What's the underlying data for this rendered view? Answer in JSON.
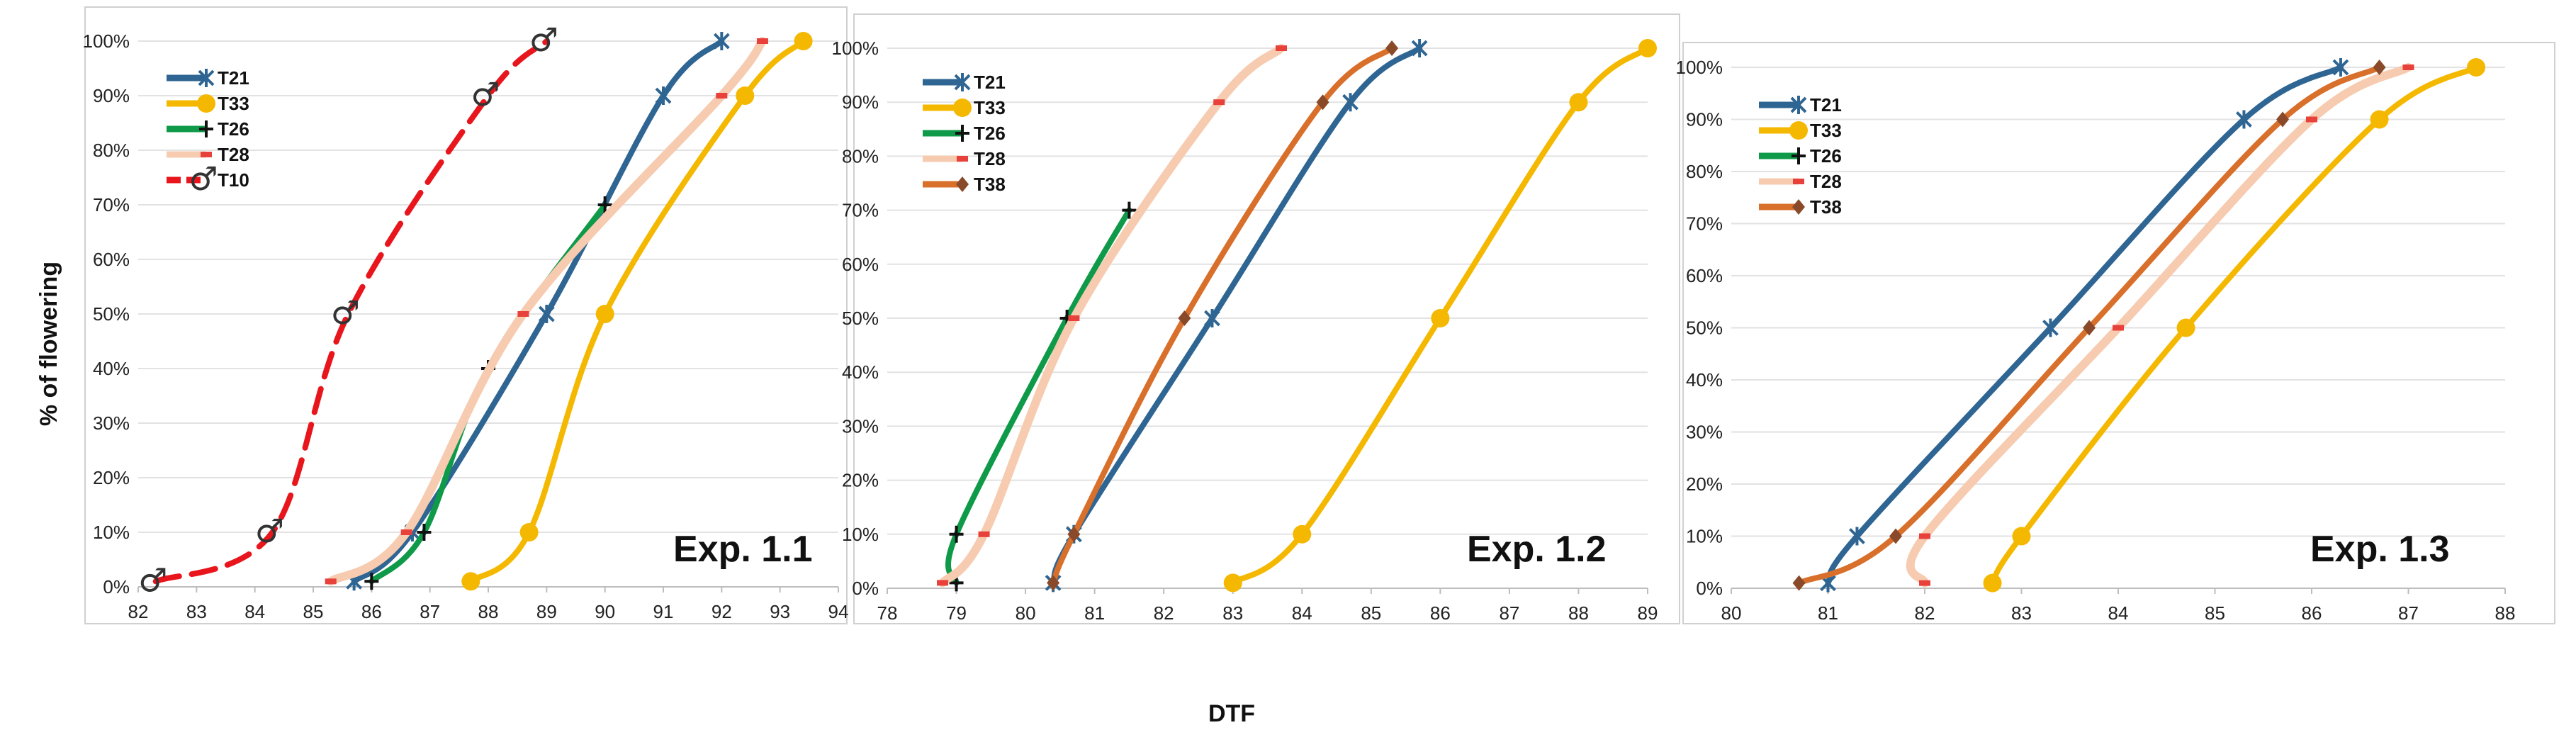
{
  "figure": {
    "ylabel": "% of flowering",
    "xlabel": "DTF"
  },
  "colors": {
    "T21": "#2e6592",
    "T33": "#f5b800",
    "T26": "#0e9a48",
    "T28": "#f6cbb0",
    "T10": "#e8161c",
    "T38": "#d86f2a",
    "marker_T28": "#e8403a",
    "marker_T10": "#333333"
  },
  "chart_data": [
    {
      "type": "line",
      "title": "Exp. 1.1",
      "xlabel": "",
      "ylabel": "% of flowering",
      "xlim": [
        82,
        94
      ],
      "ylim": [
        0,
        100
      ],
      "x_ticks": [
        "82",
        "83",
        "84",
        "85",
        "86",
        "87",
        "88",
        "89",
        "90",
        "91",
        "92",
        "93",
        "94"
      ],
      "y_ticks": [
        "0%",
        "10%",
        "20%",
        "30%",
        "40%",
        "50%",
        "60%",
        "70%",
        "80%",
        "90%",
        "100%"
      ],
      "legend_position": "top-left",
      "series": [
        {
          "name": "T21",
          "color_key": "T21",
          "marker": "star",
          "x": [
            85.7,
            86.7,
            89.0,
            91.0,
            92.0
          ],
          "y": [
            1,
            10,
            50,
            90,
            100
          ]
        },
        {
          "name": "T33",
          "color_key": "T33",
          "marker": "circle",
          "x": [
            87.7,
            88.7,
            90.0,
            92.4,
            93.4
          ],
          "y": [
            1,
            10,
            50,
            90,
            100
          ]
        },
        {
          "name": "T26",
          "color_key": "T26",
          "marker": "plus",
          "x": [
            86.0,
            86.9,
            88.0,
            90.0
          ],
          "y": [
            1,
            10,
            40,
            70
          ]
        },
        {
          "name": "T28",
          "color_key": "T28",
          "marker": "dash",
          "x": [
            85.3,
            86.6,
            88.6,
            92.0,
            92.7
          ],
          "y": [
            1,
            10,
            50,
            90,
            100
          ]
        },
        {
          "name": "T10",
          "color_key": "T10",
          "marker": "male",
          "dashed": true,
          "x": [
            82.3,
            84.3,
            85.6,
            88.0,
            89.0
          ],
          "y": [
            1,
            10,
            50,
            90,
            100
          ]
        }
      ]
    },
    {
      "type": "line",
      "title": "Exp. 1.2",
      "xlabel": "DTF",
      "ylabel": "",
      "xlim": [
        78,
        89
      ],
      "ylim": [
        0,
        100
      ],
      "x_ticks": [
        "78",
        "79",
        "80",
        "81",
        "82",
        "83",
        "84",
        "85",
        "86",
        "87",
        "88",
        "89"
      ],
      "y_ticks": [
        "0%",
        "10%",
        "20%",
        "30%",
        "40%",
        "50%",
        "60%",
        "70%",
        "80%",
        "90%",
        "100%"
      ],
      "legend_position": "top-left",
      "series": [
        {
          "name": "T21",
          "color_key": "T21",
          "marker": "star",
          "x": [
            80.4,
            80.7,
            82.7,
            84.7,
            85.7
          ],
          "y": [
            1,
            10,
            50,
            90,
            100
          ]
        },
        {
          "name": "T33",
          "color_key": "T33",
          "marker": "circle",
          "x": [
            83.0,
            84.0,
            86.0,
            88.0,
            89.0
          ],
          "y": [
            1,
            10,
            50,
            90,
            100
          ]
        },
        {
          "name": "T26",
          "color_key": "T26",
          "marker": "plus",
          "x": [
            79.0,
            79.0,
            80.6,
            81.5
          ],
          "y": [
            1,
            10,
            50,
            70
          ]
        },
        {
          "name": "T28",
          "color_key": "T28",
          "marker": "dash",
          "x": [
            78.8,
            79.4,
            80.7,
            82.8,
            83.7
          ],
          "y": [
            1,
            10,
            50,
            90,
            100
          ]
        },
        {
          "name": "T38",
          "color_key": "T38",
          "marker": "diamond",
          "x": [
            80.4,
            80.7,
            82.3,
            84.3,
            85.3
          ],
          "y": [
            1,
            10,
            50,
            90,
            100
          ]
        }
      ]
    },
    {
      "type": "line",
      "title": "Exp. 1.3",
      "xlabel": "",
      "ylabel": "",
      "xlim": [
        80,
        88
      ],
      "ylim": [
        0,
        100
      ],
      "x_ticks": [
        "80",
        "81",
        "82",
        "83",
        "84",
        "85",
        "86",
        "87",
        "88"
      ],
      "y_ticks": [
        "0%",
        "10%",
        "20%",
        "30%",
        "40%",
        "50%",
        "60%",
        "70%",
        "80%",
        "90%",
        "100%"
      ],
      "legend_position": "top-left",
      "series": [
        {
          "name": "T21",
          "color_key": "T21",
          "marker": "star",
          "x": [
            81.0,
            81.3,
            83.3,
            85.3,
            86.3
          ],
          "y": [
            1,
            10,
            50,
            90,
            100
          ]
        },
        {
          "name": "T33",
          "color_key": "T33",
          "marker": "circle",
          "x": [
            82.7,
            83.0,
            84.7,
            86.7,
            87.7
          ],
          "y": [
            1,
            10,
            50,
            90,
            100
          ]
        },
        {
          "name": "T26",
          "color_key": "T26",
          "marker": "plus",
          "x": [],
          "y": []
        },
        {
          "name": "T28",
          "color_key": "T28",
          "marker": "dash",
          "x": [
            82.0,
            82.0,
            84.0,
            86.0,
            87.0
          ],
          "y": [
            1,
            10,
            50,
            90,
            100
          ]
        },
        {
          "name": "T38",
          "color_key": "T38",
          "marker": "diamond",
          "x": [
            80.7,
            81.7,
            83.7,
            85.7,
            86.7
          ],
          "y": [
            1,
            10,
            50,
            90,
            100
          ]
        }
      ]
    }
  ]
}
